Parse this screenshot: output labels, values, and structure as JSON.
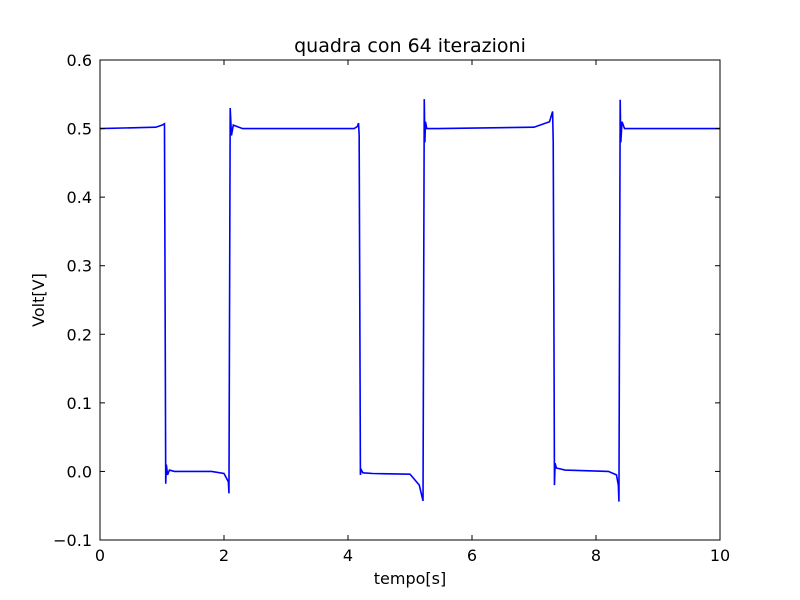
{
  "chart_data": {
    "type": "line",
    "title": "quadra con 64 iterazioni",
    "xlabel": "tempo[s]",
    "ylabel": "Volt[V]",
    "xlim": [
      0,
      10
    ],
    "ylim": [
      -0.1,
      0.6
    ],
    "xticks": [
      0,
      2,
      4,
      6,
      8,
      10
    ],
    "xtick_labels": [
      "0",
      "2",
      "4",
      "6",
      "8",
      "10"
    ],
    "yticks": [
      -0.1,
      0.0,
      0.1,
      0.2,
      0.3,
      0.4,
      0.5,
      0.6
    ],
    "ytick_labels": [
      "−0.1",
      "0.0",
      "0.1",
      "0.2",
      "0.3",
      "0.4",
      "0.5",
      "0.6"
    ],
    "grid": false,
    "line_color": "#0000ff",
    "series": [
      {
        "x": [
          0,
          0.9,
          1.0,
          1.04,
          1.05,
          1.06,
          1.07,
          1.09,
          1.12,
          1.2,
          1.8,
          2.0,
          2.07,
          2.08,
          2.09,
          2.1,
          2.12,
          2.15,
          2.3,
          3.1,
          4.1,
          4.15,
          4.17,
          4.18,
          4.19,
          4.2,
          4.21,
          4.24,
          4.4,
          5.0,
          5.15,
          5.21,
          5.22,
          5.23,
          5.24,
          5.25,
          5.27,
          5.3,
          5.45,
          7.0,
          7.25,
          7.3,
          7.31,
          7.32,
          7.33,
          7.34,
          7.36,
          7.5,
          8.2,
          8.33,
          8.36,
          8.37,
          8.38,
          8.39,
          8.4,
          8.42,
          8.46,
          8.6,
          10
        ],
        "y": [
          0.5,
          0.502,
          0.505,
          0.507,
          0.25,
          -0.018,
          0.01,
          -0.005,
          0.002,
          0.0,
          0.0,
          -0.003,
          -0.015,
          -0.032,
          0.25,
          0.53,
          0.49,
          0.505,
          0.5,
          0.5,
          0.5,
          0.503,
          0.508,
          0.49,
          0.25,
          -0.005,
          0.003,
          -0.002,
          -0.003,
          -0.004,
          -0.02,
          -0.043,
          0.25,
          0.543,
          0.48,
          0.51,
          0.5,
          0.5,
          0.5,
          0.502,
          0.51,
          0.525,
          0.48,
          0.25,
          -0.02,
          0.012,
          0.005,
          0.002,
          0.0,
          -0.005,
          -0.02,
          -0.044,
          0.25,
          0.542,
          0.48,
          0.51,
          0.5,
          0.5,
          0.5
        ]
      }
    ]
  }
}
